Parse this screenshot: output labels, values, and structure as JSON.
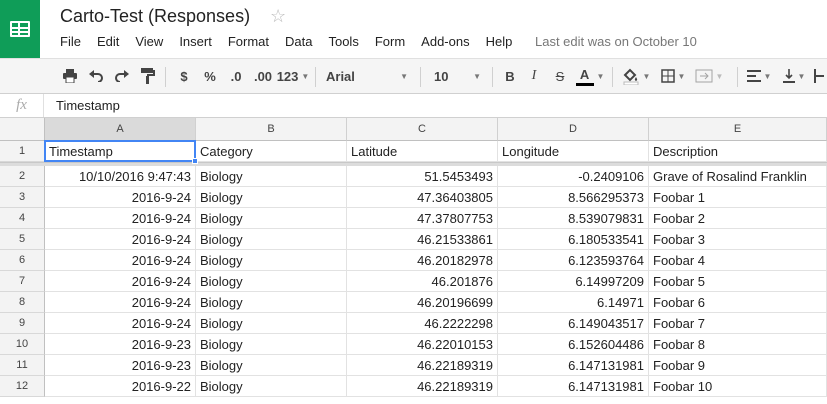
{
  "app": {
    "title": "Carto-Test (Responses)",
    "star": "☆",
    "last_edit": "Last edit was on October 10",
    "brand_color": "#0f9d58"
  },
  "menu": [
    "File",
    "Edit",
    "View",
    "Insert",
    "Format",
    "Data",
    "Tools",
    "Form",
    "Add-ons",
    "Help"
  ],
  "toolbar": {
    "print_icon": "printer-icon",
    "undo_icon": "undo-icon",
    "redo_icon": "redo-icon",
    "paint_format_icon": "paint-format-icon",
    "currency": "$",
    "percent": "%",
    "dec_decrease": ".0",
    "dec_increase": ".00",
    "number_format": "123",
    "font": "Arial",
    "font_size": "10",
    "bold": "B",
    "italic": "I",
    "strike": "S",
    "text_color": "A",
    "fill_icon": "paint-bucket-icon",
    "borders_icon": "borders-icon",
    "merge_icon": "merge-cells-icon",
    "align_icon": "align-left-icon",
    "valign_icon": "vertical-align-bottom-icon",
    "wrap_icon": "text-wrap-icon"
  },
  "formula_bar": {
    "fx": "fx",
    "value": "Timestamp"
  },
  "columns": [
    "A",
    "B",
    "C",
    "D",
    "E"
  ],
  "rows": [
    {
      "n": "1",
      "cells": [
        "Timestamp",
        "Category",
        "Latitude",
        "Longitude",
        "Description"
      ]
    },
    {
      "n": "2",
      "cells": [
        "10/10/2016 9:47:43",
        "Biology",
        "51.5453493",
        "-0.2409106",
        "Grave of Rosalind Franklin"
      ]
    },
    {
      "n": "3",
      "cells": [
        "2016-9-24",
        "Biology",
        "47.36403805",
        "8.566295373",
        "Foobar 1"
      ]
    },
    {
      "n": "4",
      "cells": [
        "2016-9-24",
        "Biology",
        "47.37807753",
        "8.539079831",
        "Foobar 2"
      ]
    },
    {
      "n": "5",
      "cells": [
        "2016-9-24",
        "Biology",
        "46.21533861",
        "6.180533541",
        "Foobar 3"
      ]
    },
    {
      "n": "6",
      "cells": [
        "2016-9-24",
        "Biology",
        "46.20182978",
        "6.123593764",
        "Foobar 4"
      ]
    },
    {
      "n": "7",
      "cells": [
        "2016-9-24",
        "Biology",
        "46.201876",
        "6.14997209",
        "Foobar 5"
      ]
    },
    {
      "n": "8",
      "cells": [
        "2016-9-24",
        "Biology",
        "46.20196699",
        "6.14971",
        "Foobar 6"
      ]
    },
    {
      "n": "9",
      "cells": [
        "2016-9-24",
        "Biology",
        "46.2222298",
        "6.149043517",
        "Foobar 7"
      ]
    },
    {
      "n": "10",
      "cells": [
        "2016-9-23",
        "Biology",
        "46.22010153",
        "6.152604486",
        "Foobar 8"
      ]
    },
    {
      "n": "11",
      "cells": [
        "2016-9-23",
        "Biology",
        "46.22189319",
        "6.147131981",
        "Foobar 9"
      ]
    },
    {
      "n": "12",
      "cells": [
        "2016-9-22",
        "Biology",
        "46.22189319",
        "6.147131981",
        "Foobar 10"
      ]
    }
  ]
}
